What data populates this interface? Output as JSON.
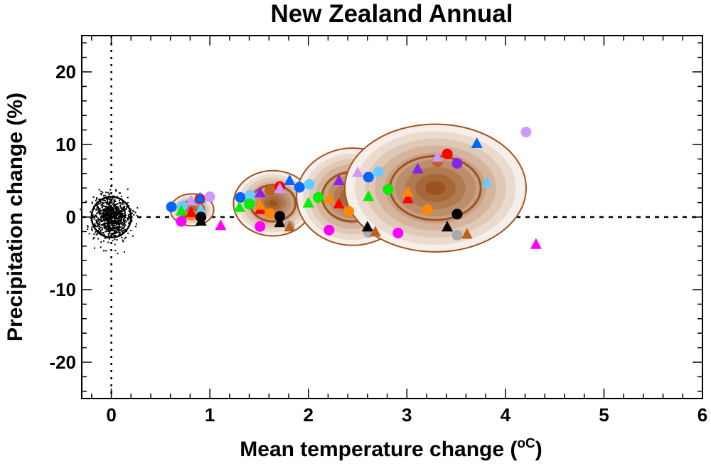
{
  "chart_data": {
    "type": "scatter",
    "title": "New Zealand Annual",
    "xlabel": "Mean temperature change (",
    "xlabel_unit": "oC",
    "xlabel_suffix": ")",
    "ylabel": "Precipitation change (%)",
    "xlim": [
      -0.3,
      6
    ],
    "ylim": [
      -25,
      25
    ],
    "xticks": [
      0,
      1,
      2,
      3,
      4,
      5,
      6
    ],
    "yticks": [
      -20,
      -10,
      0,
      10,
      20
    ],
    "grid": false,
    "reference_lines": {
      "x": 0,
      "y": 0
    },
    "colors": {
      "blue": "#0066ff",
      "lightblue": "#66ccff",
      "purple": "#8822ee",
      "lilac": "#cc99ff",
      "red": "#ff0000",
      "orange": "#ff8800",
      "green": "#00ee00",
      "magenta": "#ff00ff",
      "black": "#000000",
      "grey": "#aaaaaa",
      "chocolate": "#c0601f",
      "ellipse_outline": "#a0521d",
      "ellipse_outer": "#f6eee8",
      "ellipse_center": "#9a5420"
    },
    "natural_variability_cloud": {
      "center": [
        0,
        0
      ],
      "x_spread": 0.18,
      "y_spread": 3
    },
    "ellipses": [
      {
        "cx": 0.82,
        "cy": 1.0,
        "rx": 0.22,
        "ry": 2.2,
        "inner_rx": 0.12,
        "inner_ry": 1.2
      },
      {
        "cx": 1.64,
        "cy": 1.9,
        "rx": 0.4,
        "ry": 4.5,
        "inner_rx": 0.23,
        "inner_ry": 2.5
      },
      {
        "cx": 2.45,
        "cy": 2.8,
        "rx": 0.57,
        "ry": 6.7,
        "inner_rx": 0.31,
        "inner_ry": 3.4
      },
      {
        "cx": 3.29,
        "cy": 4.0,
        "rx": 0.92,
        "ry": 8.8,
        "inner_rx": 0.46,
        "inner_ry": 4.4
      }
    ],
    "points": [
      {
        "x": 0.61,
        "y": 1.4,
        "c": "blue",
        "s": "circle"
      },
      {
        "x": 0.72,
        "y": 1.5,
        "c": "lightblue",
        "s": "circle"
      },
      {
        "x": 0.81,
        "y": 2.2,
        "c": "lilac",
        "s": "triangle"
      },
      {
        "x": 0.9,
        "y": 2.5,
        "c": "red",
        "s": "circle"
      },
      {
        "x": 0.9,
        "y": 2.6,
        "c": "blue",
        "s": "triangle"
      },
      {
        "x": 1.0,
        "y": 2.8,
        "c": "lilac",
        "s": "circle"
      },
      {
        "x": 0.71,
        "y": 0.8,
        "c": "green",
        "s": "triangle"
      },
      {
        "x": 0.81,
        "y": 0.3,
        "c": "orange",
        "s": "circle"
      },
      {
        "x": 0.81,
        "y": 0.6,
        "c": "red",
        "s": "triangle"
      },
      {
        "x": 0.91,
        "y": 1.0,
        "c": "lightblue",
        "s": "triangle"
      },
      {
        "x": 0.91,
        "y": 0.0,
        "c": "black",
        "s": "circle"
      },
      {
        "x": 0.91,
        "y": -0.6,
        "c": "black",
        "s": "triangle"
      },
      {
        "x": 0.71,
        "y": -0.6,
        "c": "magenta",
        "s": "circle"
      },
      {
        "x": 1.11,
        "y": -1.2,
        "c": "magenta",
        "s": "triangle"
      },
      {
        "x": 1.31,
        "y": 2.7,
        "c": "blue",
        "s": "circle"
      },
      {
        "x": 1.41,
        "y": 3.0,
        "c": "lightblue",
        "s": "circle"
      },
      {
        "x": 1.51,
        "y": 3.3,
        "c": "purple",
        "s": "triangle"
      },
      {
        "x": 1.61,
        "y": 3.7,
        "c": "chocolate",
        "s": "circle"
      },
      {
        "x": 1.71,
        "y": 4.2,
        "c": "red",
        "s": "circle"
      },
      {
        "x": 1.71,
        "y": 3.9,
        "c": "lilac",
        "s": "triangle"
      },
      {
        "x": 1.81,
        "y": 5.0,
        "c": "blue",
        "s": "triangle"
      },
      {
        "x": 1.91,
        "y": 4.1,
        "c": "blue",
        "s": "circle"
      },
      {
        "x": 2.01,
        "y": 4.5,
        "c": "lightblue",
        "s": "circle"
      },
      {
        "x": 1.3,
        "y": 1.3,
        "c": "green",
        "s": "triangle"
      },
      {
        "x": 1.4,
        "y": 1.8,
        "c": "green",
        "s": "circle"
      },
      {
        "x": 1.51,
        "y": 1.0,
        "c": "red",
        "s": "triangle"
      },
      {
        "x": 1.51,
        "y": 1.6,
        "c": "orange",
        "s": "triangle"
      },
      {
        "x": 1.61,
        "y": 0.5,
        "c": "orange",
        "s": "circle"
      },
      {
        "x": 1.71,
        "y": 0.1,
        "c": "black",
        "s": "circle"
      },
      {
        "x": 1.71,
        "y": -0.8,
        "c": "black",
        "s": "triangle"
      },
      {
        "x": 1.81,
        "y": -1.2,
        "c": "grey",
        "s": "circle"
      },
      {
        "x": 1.81,
        "y": -1.4,
        "c": "chocolate",
        "s": "triangle"
      },
      {
        "x": 1.51,
        "y": -1.3,
        "c": "magenta",
        "s": "circle"
      },
      {
        "x": 2.31,
        "y": 5.0,
        "c": "purple",
        "s": "triangle"
      },
      {
        "x": 2.5,
        "y": 6.1,
        "c": "lilac",
        "s": "triangle"
      },
      {
        "x": 2.1,
        "y": 2.7,
        "c": "green",
        "s": "circle"
      },
      {
        "x": 2.0,
        "y": 1.9,
        "c": "green",
        "s": "triangle"
      },
      {
        "x": 2.21,
        "y": 2.5,
        "c": "orange",
        "s": "triangle"
      },
      {
        "x": 2.31,
        "y": 1.8,
        "c": "red",
        "s": "triangle"
      },
      {
        "x": 2.41,
        "y": 0.8,
        "c": "orange",
        "s": "circle"
      },
      {
        "x": 2.21,
        "y": -1.8,
        "c": "magenta",
        "s": "circle"
      },
      {
        "x": 2.61,
        "y": -2.1,
        "c": "grey",
        "s": "circle"
      },
      {
        "x": 2.6,
        "y": -1.4,
        "c": "black",
        "s": "triangle"
      },
      {
        "x": 2.68,
        "y": -2.1,
        "c": "chocolate",
        "s": "triangle"
      },
      {
        "x": 2.61,
        "y": 5.5,
        "c": "blue",
        "s": "circle"
      },
      {
        "x": 2.71,
        "y": 6.2,
        "c": "lightblue",
        "s": "circle"
      },
      {
        "x": 2.61,
        "y": 2.8,
        "c": "green",
        "s": "triangle"
      },
      {
        "x": 2.81,
        "y": 3.8,
        "c": "green",
        "s": "circle"
      },
      {
        "x": 2.91,
        "y": -2.2,
        "c": "magenta",
        "s": "circle"
      },
      {
        "x": 3.11,
        "y": 6.6,
        "c": "purple",
        "s": "triangle"
      },
      {
        "x": 3.31,
        "y": 7.6,
        "c": "chocolate",
        "s": "circle"
      },
      {
        "x": 3.31,
        "y": 8.2,
        "c": "lilac",
        "s": "triangle"
      },
      {
        "x": 3.41,
        "y": 8.7,
        "c": "red",
        "s": "circle"
      },
      {
        "x": 3.51,
        "y": 7.4,
        "c": "purple",
        "s": "circle"
      },
      {
        "x": 3.71,
        "y": 10.1,
        "c": "blue",
        "s": "triangle"
      },
      {
        "x": 4.21,
        "y": 11.7,
        "c": "lilac",
        "s": "circle"
      },
      {
        "x": 3.81,
        "y": 4.7,
        "c": "lightblue",
        "s": "triangle"
      },
      {
        "x": 3.01,
        "y": 2.5,
        "c": "red",
        "s": "triangle"
      },
      {
        "x": 3.01,
        "y": 3.4,
        "c": "orange",
        "s": "triangle"
      },
      {
        "x": 3.21,
        "y": 1.0,
        "c": "orange",
        "s": "circle"
      },
      {
        "x": 3.51,
        "y": 0.4,
        "c": "black",
        "s": "circle"
      },
      {
        "x": 3.41,
        "y": -1.4,
        "c": "black",
        "s": "triangle"
      },
      {
        "x": 3.51,
        "y": -2.5,
        "c": "grey",
        "s": "circle"
      },
      {
        "x": 3.61,
        "y": -2.4,
        "c": "chocolate",
        "s": "triangle"
      },
      {
        "x": 4.31,
        "y": -3.8,
        "c": "magenta",
        "s": "triangle"
      }
    ]
  }
}
